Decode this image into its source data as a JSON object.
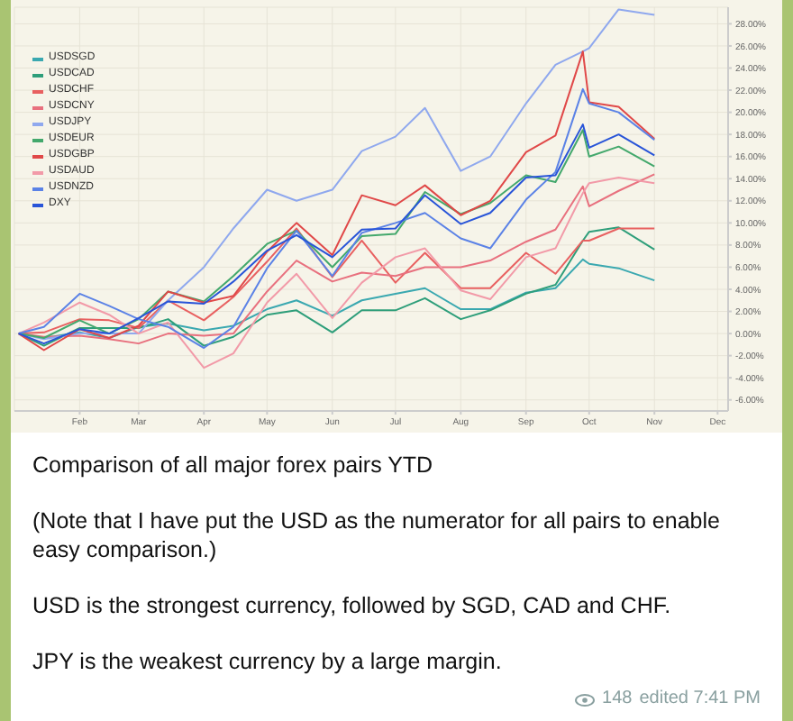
{
  "chart_data": {
    "type": "line",
    "title": "Comparison of all major forex pairs YTD",
    "annotations": [
      "(Note that I have put the USD as the numerator for all pairs to enable easy comparison.)",
      "USD is the strongest currency, followed by SGD, CAD and CHF.",
      "JPY is the weakest currency by a large margin.",
      "148",
      "edited 7:41 PM"
    ],
    "x": [
      "--01-03",
      "--01-15",
      "--02-01",
      "--02-15",
      "--03-01",
      "--03-15",
      "--04-01",
      "--04-15",
      "--05-01",
      "--05-15",
      "--06-01",
      "--06-15",
      "--07-01",
      "--07-15",
      "--08-01",
      "--08-15",
      "--09-01",
      "--09-15",
      "--09-28",
      "--10-01",
      "--10-15",
      "--11-01"
    ],
    "series": [
      {
        "name": "USDSGD",
        "color": "#3aa8b0",
        "values": [
          0,
          -0.4,
          0.1,
          -0.4,
          0.6,
          0.9,
          0.3,
          0.7,
          2.2,
          3,
          1.6,
          3,
          3.6,
          4.1,
          2.2,
          2.2,
          3.7,
          4.1,
          6.7,
          6.3,
          5.9,
          4.8
        ]
      },
      {
        "name": "USDCAD",
        "color": "#2e9e7a",
        "values": [
          0,
          -1.1,
          0.5,
          0.5,
          0.5,
          1.3,
          -1.1,
          -0.3,
          1.7,
          2.1,
          0.1,
          2.1,
          2.1,
          3.2,
          1.3,
          2.1,
          3.6,
          4.4,
          8.4,
          9.2,
          9.6,
          7.6
        ]
      },
      {
        "name": "USDCHF",
        "color": "#e86060",
        "values": [
          0,
          0.1,
          1.3,
          1.2,
          0.5,
          3,
          1.2,
          3.3,
          6.5,
          9.5,
          5.1,
          8.4,
          4.6,
          7.3,
          4.1,
          4.1,
          7.3,
          5.4,
          8.4,
          8.4,
          9.5,
          9.5
        ]
      },
      {
        "name": "USDCNY",
        "color": "#e8707e",
        "values": [
          0,
          -0.3,
          -0.2,
          -0.5,
          -0.9,
          0,
          -0.2,
          0,
          3.8,
          6.6,
          4.7,
          5.5,
          5.2,
          6,
          6,
          6.6,
          8.3,
          9.4,
          13.3,
          11.5,
          12.9,
          14.4
        ]
      },
      {
        "name": "USDJPY",
        "color": "#8fa8ee",
        "values": [
          0,
          -0.5,
          0,
          0,
          0,
          3,
          6,
          9.5,
          13,
          12,
          13,
          16.5,
          17.8,
          20.4,
          14.7,
          16,
          20.8,
          24.3,
          25.5,
          25.8,
          29.3,
          28.8
        ]
      },
      {
        "name": "USDEUR",
        "color": "#43a86c",
        "values": [
          0,
          -0.4,
          1.2,
          0,
          1.3,
          3.8,
          2.9,
          5.2,
          8.1,
          9.3,
          6,
          8.8,
          9,
          12.8,
          10.8,
          11.8,
          14.3,
          13.7,
          18.4,
          16,
          16.9,
          15.1
        ]
      },
      {
        "name": "USDGBP",
        "color": "#e04848",
        "values": [
          0,
          -1.5,
          0.4,
          -0.4,
          0.7,
          3.8,
          2.8,
          3.4,
          7.4,
          10,
          7.1,
          12.5,
          11.6,
          13.4,
          10.7,
          12,
          16.4,
          17.9,
          25.5,
          20.9,
          20.5,
          17.6
        ]
      },
      {
        "name": "USDAUD",
        "color": "#f29aa8",
        "values": [
          0,
          1,
          2.8,
          1.7,
          0,
          1,
          -3.1,
          -1.8,
          2.8,
          5.4,
          1.4,
          4.6,
          6.9,
          7.7,
          3.9,
          3.1,
          6.9,
          7.7,
          12.7,
          13.6,
          14.1,
          13.6
        ]
      },
      {
        "name": "USDNZD",
        "color": "#5b82e6",
        "values": [
          0,
          0.6,
          3.6,
          2.5,
          1.3,
          0.6,
          -1.3,
          0.6,
          5.9,
          9.3,
          5.2,
          9.1,
          10,
          10.9,
          8.6,
          7.7,
          12.1,
          14.6,
          22.1,
          20.8,
          20,
          17.5
        ]
      },
      {
        "name": "DXY",
        "color": "#2854d8",
        "values": [
          0,
          -0.9,
          0.4,
          0,
          1.4,
          2.9,
          2.7,
          4.7,
          7.5,
          8.9,
          6.9,
          9.4,
          9.5,
          12.5,
          9.9,
          10.9,
          14.1,
          14.3,
          18.9,
          16.8,
          18,
          16.1
        ]
      }
    ],
    "xlim": [
      "--01-01",
      "--12-06"
    ],
    "xticks": [
      {
        "value": "--02-01",
        "label": "Feb"
      },
      {
        "value": "--03-01",
        "label": "Mar"
      },
      {
        "value": "--04-01",
        "label": "Apr"
      },
      {
        "value": "--05-01",
        "label": "May"
      },
      {
        "value": "--06-01",
        "label": "Jun"
      },
      {
        "value": "--07-01",
        "label": "Jul"
      },
      {
        "value": "--08-01",
        "label": "Aug"
      },
      {
        "value": "--09-01",
        "label": "Sep"
      },
      {
        "value": "--10-01",
        "label": "Oct"
      },
      {
        "value": "--11-01",
        "label": "Nov"
      },
      {
        "value": "--12-01",
        "label": "Dec"
      }
    ],
    "ylim": [
      -7,
      29.5
    ],
    "yticks": [
      {
        "value": -6,
        "label": "-6.00%"
      },
      {
        "value": -4,
        "label": "-4.00%"
      },
      {
        "value": -2,
        "label": "-2.00%"
      },
      {
        "value": 0,
        "label": "0.00%"
      },
      {
        "value": 2,
        "label": "2.00%"
      },
      {
        "value": 4,
        "label": "4.00%"
      },
      {
        "value": 6,
        "label": "6.00%"
      },
      {
        "value": 8,
        "label": "8.00%"
      },
      {
        "value": 10,
        "label": "10.00%"
      },
      {
        "value": 12,
        "label": "12.00%"
      },
      {
        "value": 14,
        "label": "14.00%"
      },
      {
        "value": 16,
        "label": "16.00%"
      },
      {
        "value": 18,
        "label": "18.00%"
      },
      {
        "value": 20,
        "label": "20.00%"
      },
      {
        "value": 22,
        "label": "22.00%"
      },
      {
        "value": 24,
        "label": "24.00%"
      },
      {
        "value": 26,
        "label": "26.00%"
      },
      {
        "value": 28,
        "label": "28.00%"
      }
    ],
    "grid": true,
    "legend": "top left",
    "marker": "none",
    "line_style": "solid"
  }
}
